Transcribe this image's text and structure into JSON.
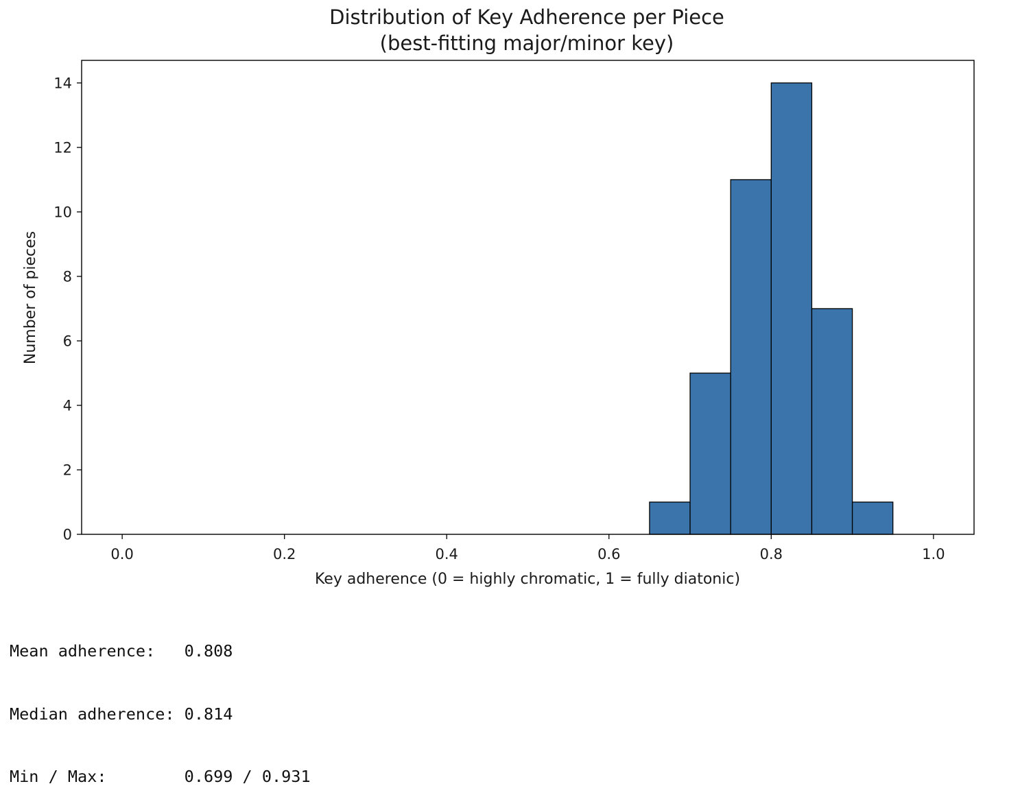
{
  "chart_data": {
    "type": "bar",
    "title": [
      "Distribution of Key Adherence per Piece",
      "(best-fitting major/minor key)"
    ],
    "xlabel": "Key adherence (0 = highly chromatic, 1 = fully diatonic)",
    "ylabel": "Number of pieces",
    "xlim": [
      -0.05,
      1.05
    ],
    "ylim": [
      0,
      14.7
    ],
    "xticks": [
      0.0,
      0.2,
      0.4,
      0.6,
      0.8,
      1.0
    ],
    "xtick_labels": [
      "0.0",
      "0.2",
      "0.4",
      "0.6",
      "0.8",
      "1.0"
    ],
    "yticks": [
      0,
      2,
      4,
      6,
      8,
      10,
      12,
      14
    ],
    "ytick_labels": [
      "0",
      "2",
      "4",
      "6",
      "8",
      "10",
      "12",
      "14"
    ],
    "bins": [
      {
        "start": 0.0,
        "end": 0.05,
        "count": 0
      },
      {
        "start": 0.05,
        "end": 0.1,
        "count": 0
      },
      {
        "start": 0.1,
        "end": 0.15,
        "count": 0
      },
      {
        "start": 0.15,
        "end": 0.2,
        "count": 0
      },
      {
        "start": 0.2,
        "end": 0.25,
        "count": 0
      },
      {
        "start": 0.25,
        "end": 0.3,
        "count": 0
      },
      {
        "start": 0.3,
        "end": 0.35,
        "count": 0
      },
      {
        "start": 0.35,
        "end": 0.4,
        "count": 0
      },
      {
        "start": 0.4,
        "end": 0.45,
        "count": 0
      },
      {
        "start": 0.45,
        "end": 0.5,
        "count": 0
      },
      {
        "start": 0.5,
        "end": 0.55,
        "count": 0
      },
      {
        "start": 0.55,
        "end": 0.6,
        "count": 0
      },
      {
        "start": 0.6,
        "end": 0.65,
        "count": 0
      },
      {
        "start": 0.65,
        "end": 0.7,
        "count": 1
      },
      {
        "start": 0.7,
        "end": 0.75,
        "count": 5
      },
      {
        "start": 0.75,
        "end": 0.8,
        "count": 11
      },
      {
        "start": 0.8,
        "end": 0.85,
        "count": 14
      },
      {
        "start": 0.85,
        "end": 0.9,
        "count": 7
      },
      {
        "start": 0.9,
        "end": 0.95,
        "count": 1
      },
      {
        "start": 0.95,
        "end": 1.0,
        "count": 0
      }
    ],
    "bar_color": "#3a74ab",
    "edge_color": "#000000",
    "grid": false,
    "legend": "none"
  },
  "stats": {
    "lines": [
      "Mean adherence:   0.808",
      "Median adherence: 0.814",
      "Min / Max:        0.699 / 0.931"
    ]
  }
}
